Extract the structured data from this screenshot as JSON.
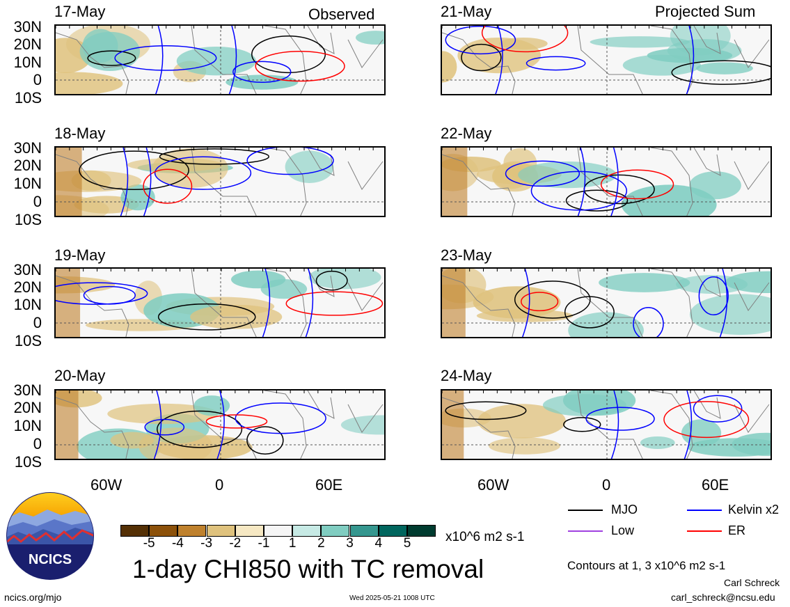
{
  "panels": [
    {
      "date": "17-May",
      "tag": "Observed"
    },
    {
      "date": "21-May",
      "tag": "Projected Sum"
    },
    {
      "date": "18-May",
      "tag": ""
    },
    {
      "date": "22-May",
      "tag": ""
    },
    {
      "date": "19-May",
      "tag": ""
    },
    {
      "date": "23-May",
      "tag": ""
    },
    {
      "date": "20-May",
      "tag": ""
    },
    {
      "date": "24-May",
      "tag": ""
    }
  ],
  "lat_labels": [
    "30N",
    "20N",
    "10N",
    "0",
    "10S"
  ],
  "lon_labels": [
    "60W",
    "0",
    "60E"
  ],
  "colorbar": {
    "ticks": [
      "-5",
      "-4",
      "-3",
      "-2",
      "-1",
      "1",
      "2",
      "3",
      "4",
      "5"
    ],
    "colors": [
      "#543005",
      "#8c510a",
      "#bf812d",
      "#dfc27d",
      "#f6e8c3",
      "#f5f5f5",
      "#c7eae5",
      "#80cdc1",
      "#35978f",
      "#01665e",
      "#003c30"
    ],
    "units": "x10^6 m2 s-1"
  },
  "title": "1-day CHI850 with TC removal",
  "legend": {
    "items": [
      {
        "label": "MJO",
        "color": "#000000"
      },
      {
        "label": "Kelvin x2",
        "color": "#0000ff"
      },
      {
        "label": "Low",
        "color": "#a040e0"
      },
      {
        "label": "ER",
        "color": "#ff0000"
      }
    ],
    "contours_note": "Contours at 1, 3 x10^6 m2 s-1"
  },
  "logo_text": "NCICS",
  "footer": {
    "url": "ncics.org/mjo",
    "timestamp": "Wed 2025-05-21 1008 UTC",
    "author": "Carl Schreck",
    "email": "carl_schreck@ncsu.edu"
  },
  "colors": {
    "mjo": "#000000",
    "kelvin": "#0000ff",
    "er": "#ff0000",
    "low": "#a040e0",
    "positive": "#80cdc1",
    "negative": "#dfc27d",
    "land": "#808080"
  }
}
